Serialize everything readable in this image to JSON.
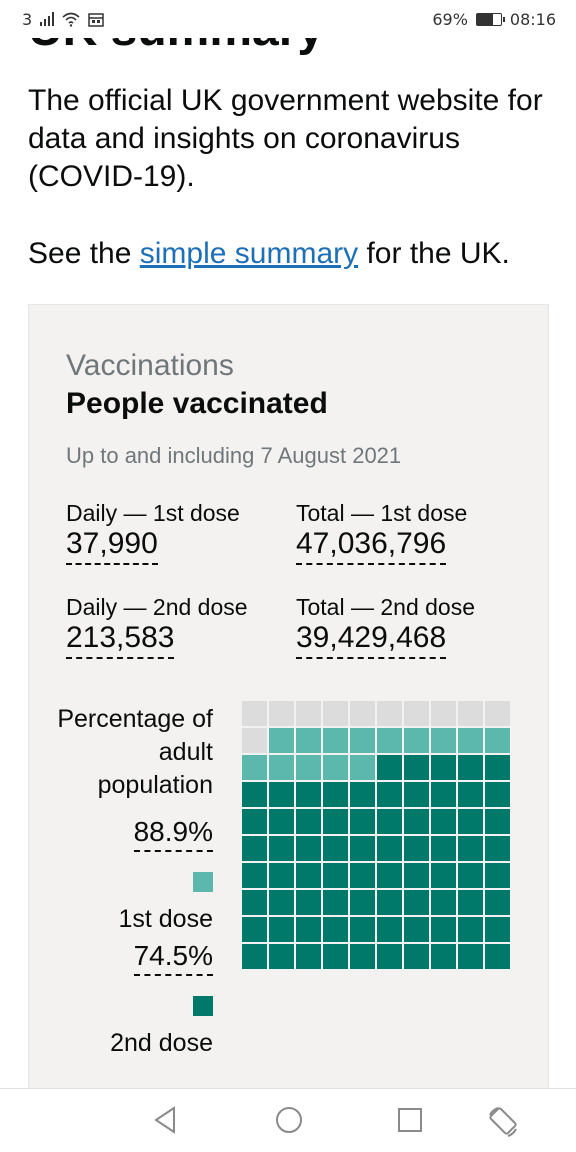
{
  "status_bar": {
    "carrier": "3",
    "battery": "69%",
    "battery_level": 0.69,
    "time": "08:16"
  },
  "page": {
    "heading": "UK summary",
    "intro": "The official UK government website for data and insights on coronavirus (COVID-19).",
    "summary_prefix": "See the ",
    "summary_link": "simple summary",
    "summary_suffix": " for the UK."
  },
  "card": {
    "category": "Vaccinations",
    "title": "People vaccinated",
    "date": "Up to and including 7 August 2021",
    "metrics": [
      {
        "label": "Daily — 1st dose",
        "value": "37,990"
      },
      {
        "label": "Total — 1st dose",
        "value": "47,036,796"
      },
      {
        "label": "Daily — 2nd dose",
        "value": "213,583"
      },
      {
        "label": "Total — 2nd dose",
        "value": "39,429,468"
      }
    ],
    "percentage": {
      "label": "Percentage of adult population",
      "first_value": "88.9%",
      "first_label": "1st dose",
      "second_value": "74.5%",
      "second_label": "2nd dose"
    }
  },
  "chart_data": {
    "type": "heatmap",
    "grid": [
      10,
      10
    ],
    "series": [
      {
        "name": "1st dose",
        "percent": 88.9,
        "color": "#5cb8ac"
      },
      {
        "name": "2nd dose",
        "percent": 74.5,
        "color": "#00796b"
      }
    ],
    "empty_color": "#dcdcdc"
  }
}
